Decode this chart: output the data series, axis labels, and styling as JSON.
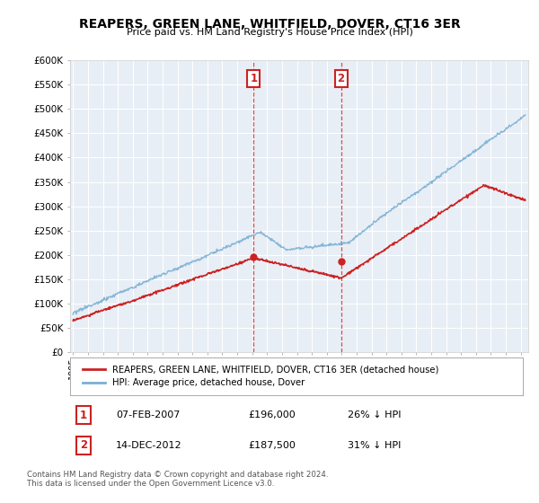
{
  "title": "REAPERS, GREEN LANE, WHITFIELD, DOVER, CT16 3ER",
  "subtitle": "Price paid vs. HM Land Registry's House Price Index (HPI)",
  "ylabel_ticks": [
    "£0",
    "£50K",
    "£100K",
    "£150K",
    "£200K",
    "£250K",
    "£300K",
    "£350K",
    "£400K",
    "£450K",
    "£500K",
    "£550K",
    "£600K"
  ],
  "ylim": [
    0,
    600000
  ],
  "xlim_start": 1994.8,
  "xlim_end": 2025.5,
  "hpi_color": "#7ab0d4",
  "price_color": "#cc2222",
  "marker_color": "#cc2222",
  "vline_color": "#cc3333",
  "annotation_box_color": "#cc2222",
  "sale1_x": 2007.1,
  "sale1_y": 196000,
  "sale1_label": "1",
  "sale1_date": "07-FEB-2007",
  "sale1_price": "£196,000",
  "sale1_hpi": "26% ↓ HPI",
  "sale2_x": 2012.95,
  "sale2_y": 187500,
  "sale2_label": "2",
  "sale2_date": "14-DEC-2012",
  "sale2_price": "£187,500",
  "sale2_hpi": "31% ↓ HPI",
  "legend_line1": "REAPERS, GREEN LANE, WHITFIELD, DOVER, CT16 3ER (detached house)",
  "legend_line2": "HPI: Average price, detached house, Dover",
  "footer": "Contains HM Land Registry data © Crown copyright and database right 2024.\nThis data is licensed under the Open Government Licence v3.0.",
  "background_color": "#e8eef5"
}
